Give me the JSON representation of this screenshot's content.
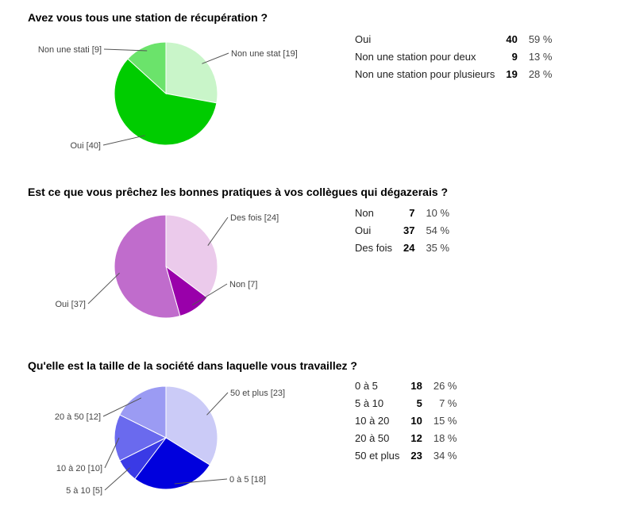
{
  "questions": [
    {
      "title": "Avez vous tous une station de récupération ?",
      "summary": [
        {
          "label": "Oui",
          "count": "40",
          "percent": "59 %"
        },
        {
          "label": "Non une station pour deux",
          "count": "9",
          "percent": "13 %"
        },
        {
          "label": "Non une station pour plusieurs",
          "count": "19",
          "percent": "28 %"
        }
      ]
    },
    {
      "title": "Est ce que vous prêchez les bonnes pratiques à vos collègues qui dégazerais ?",
      "summary": [
        {
          "label": "Non",
          "count": "7",
          "percent": "10 %"
        },
        {
          "label": "Oui",
          "count": "37",
          "percent": "54 %"
        },
        {
          "label": "Des fois",
          "count": "24",
          "percent": "35 %"
        }
      ]
    },
    {
      "title": "Qu'elle est la taille de la société dans laquelle vous travaillez ?",
      "summary": [
        {
          "label": "0 à 5",
          "count": "18",
          "percent": "26 %"
        },
        {
          "label": "5 à 10",
          "count": "5",
          "percent": "7 %"
        },
        {
          "label": "10 à 20",
          "count": "10",
          "percent": "15 %"
        },
        {
          "label": "20 à 50",
          "count": "12",
          "percent": "18 %"
        },
        {
          "label": "50 et plus",
          "count": "23",
          "percent": "34 %"
        }
      ]
    }
  ],
  "chart_data": [
    {
      "type": "pie",
      "title": "Avez vous tous une station de récupération ?",
      "slices": [
        {
          "name": "Non une stat",
          "value": 19,
          "color": "#c9f5c9",
          "callout": "Non une stat [19]"
        },
        {
          "name": "Oui",
          "value": 40,
          "color": "#00cc00",
          "callout": "Oui [40]"
        },
        {
          "name": "Non une stati",
          "value": 9,
          "color": "#6be36b",
          "callout": "Non une stati [9]"
        }
      ]
    },
    {
      "type": "pie",
      "title": "Est ce que vous prêchez les bonnes pratiques à vos collègues qui dégazerais ?",
      "slices": [
        {
          "name": "Des fois",
          "value": 24,
          "color": "#ebcaeb",
          "callout": "Des fois [24]"
        },
        {
          "name": "Non",
          "value": 7,
          "color": "#9900aa",
          "callout": "Non [7]"
        },
        {
          "name": "Oui",
          "value": 37,
          "color": "#c06ccc",
          "callout": "Oui [37]"
        }
      ]
    },
    {
      "type": "pie",
      "title": "Qu'elle est la taille de la société dans laquelle vous travaillez ?",
      "slices": [
        {
          "name": "50 et plus",
          "value": 23,
          "color": "#cbcbf7",
          "callout": "50 et plus [23]"
        },
        {
          "name": "0 à 5",
          "value": 18,
          "color": "#0000dd",
          "callout": "0 à 5 [18]"
        },
        {
          "name": "5 à 10",
          "value": 5,
          "color": "#3a3ae6",
          "callout": "5 à 10 [5]"
        },
        {
          "name": "10 à 20",
          "value": 10,
          "color": "#6a6aee",
          "callout": "10 à 20 [10]"
        },
        {
          "name": "20 à 50",
          "value": 12,
          "color": "#9b9bf3",
          "callout": "20 à 50 [12]"
        }
      ]
    }
  ]
}
